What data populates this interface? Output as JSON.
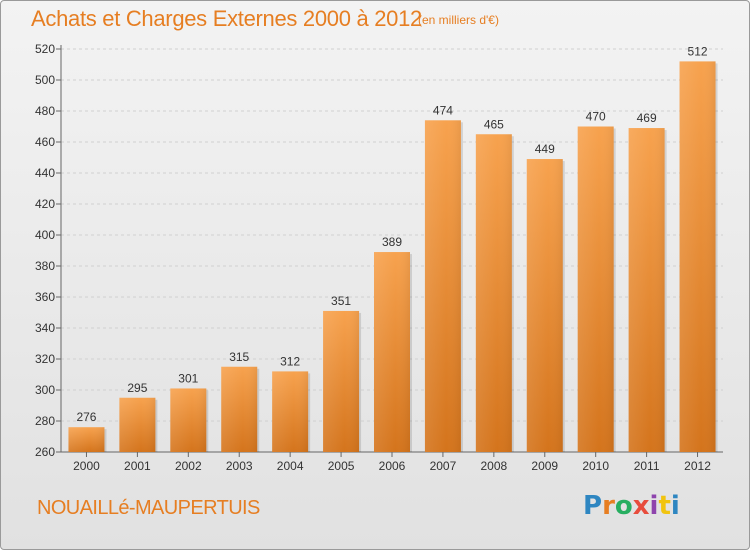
{
  "header": {
    "title": "Achats et Charges Externes 2000 à 2012",
    "unit": "(en milliers d'€)"
  },
  "footer": {
    "place": "NOUAILLé-MAUPERTUIS",
    "logo": "Proxiti",
    "logo_colors": [
      "#2e86c1",
      "#e67e22",
      "#27ae60",
      "#e74c3c",
      "#8e44ad",
      "#f1c40f",
      "#2e86c1"
    ]
  },
  "colors": {
    "accent": "#e67e22",
    "bar_top": "#f7a24e",
    "bar_bottom": "#d4741c"
  },
  "chart_data": {
    "type": "bar",
    "title": "Achats et Charges Externes 2000 à 2012",
    "subtitle": "(en milliers d'€)",
    "xlabel": "",
    "ylabel": "",
    "categories": [
      "2000",
      "2001",
      "2002",
      "2003",
      "2004",
      "2005",
      "2006",
      "2007",
      "2008",
      "2009",
      "2010",
      "2011",
      "2012"
    ],
    "values": [
      276,
      295,
      301,
      315,
      312,
      351,
      389,
      474,
      465,
      449,
      470,
      469,
      512
    ],
    "ylim": [
      260,
      520
    ],
    "yticks": [
      260,
      280,
      300,
      320,
      340,
      360,
      380,
      400,
      420,
      440,
      460,
      480,
      500,
      520
    ],
    "grid": true,
    "legend": "none"
  }
}
